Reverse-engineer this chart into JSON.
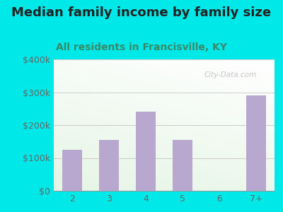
{
  "title": "Median family income by family size",
  "subtitle": "All residents in Francisville, KY",
  "categories": [
    "2",
    "3",
    "4",
    "5",
    "6",
    "7+"
  ],
  "values": [
    125000,
    155000,
    240000,
    155000,
    0,
    290000
  ],
  "bar_color": "#b8a8d0",
  "background_outer": "#00e8e8",
  "title_color": "#222222",
  "subtitle_color": "#3a8a6a",
  "axis_label_color": "#666666",
  "ylim": [
    0,
    400000
  ],
  "yticks": [
    0,
    100000,
    200000,
    300000,
    400000
  ],
  "ytick_labels": [
    "$0",
    "$100k",
    "$200k",
    "$300k",
    "$400k"
  ],
  "watermark": "City-Data.com",
  "title_fontsize": 13,
  "subtitle_fontsize": 10,
  "tick_fontsize": 9
}
